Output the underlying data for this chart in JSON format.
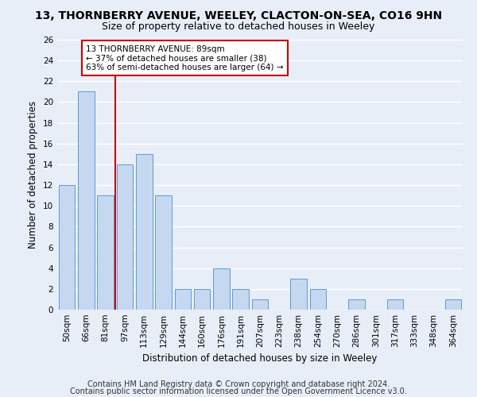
{
  "title": "13, THORNBERRY AVENUE, WEELEY, CLACTON-ON-SEA, CO16 9HN",
  "subtitle": "Size of property relative to detached houses in Weeley",
  "xlabel": "Distribution of detached houses by size in Weeley",
  "ylabel": "Number of detached properties",
  "categories": [
    "50sqm",
    "66sqm",
    "81sqm",
    "97sqm",
    "113sqm",
    "129sqm",
    "144sqm",
    "160sqm",
    "176sqm",
    "191sqm",
    "207sqm",
    "223sqm",
    "238sqm",
    "254sqm",
    "270sqm",
    "286sqm",
    "301sqm",
    "317sqm",
    "333sqm",
    "348sqm",
    "364sqm"
  ],
  "values": [
    12,
    21,
    11,
    14,
    15,
    11,
    2,
    2,
    4,
    2,
    1,
    0,
    3,
    2,
    0,
    1,
    0,
    1,
    0,
    0,
    1
  ],
  "bar_color": "#c5d8f0",
  "bar_edge_color": "#5b9bd5",
  "vline_x_idx": 2,
  "vline_color": "#cc0000",
  "annotation_box_text": "13 THORNBERRY AVENUE: 89sqm\n← 37% of detached houses are smaller (38)\n63% of semi-detached houses are larger (64) →",
  "annotation_box_color": "#cc0000",
  "annotation_box_bg": "#ffffff",
  "ylim": [
    0,
    26
  ],
  "yticks": [
    0,
    2,
    4,
    6,
    8,
    10,
    12,
    14,
    16,
    18,
    20,
    22,
    24,
    26
  ],
  "footer1": "Contains HM Land Registry data © Crown copyright and database right 2024.",
  "footer2": "Contains public sector information licensed under the Open Government Licence v3.0.",
  "bg_color": "#e8eef8",
  "fig_bg_color": "#e8eef8",
  "grid_color": "#ffffff",
  "title_fontsize": 10,
  "subtitle_fontsize": 9,
  "axis_label_fontsize": 8.5,
  "tick_fontsize": 7.5,
  "footer_fontsize": 7
}
